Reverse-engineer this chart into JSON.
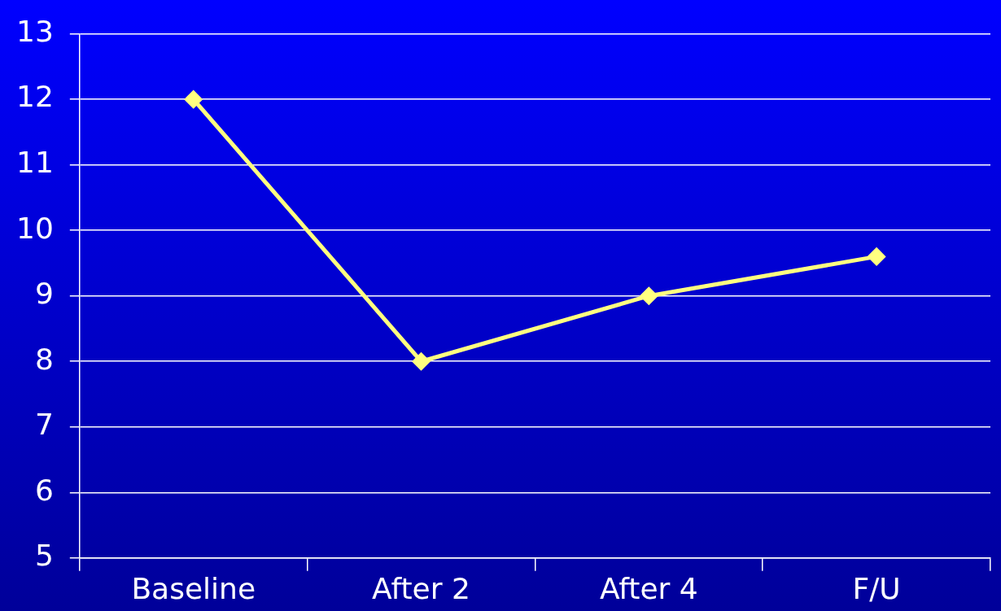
{
  "chart_data": {
    "type": "line",
    "categories": [
      "Baseline",
      "After 2",
      "After 4",
      "F/U"
    ],
    "series": [
      {
        "color": "#ffff80",
        "values": [
          12,
          8,
          9,
          9.6
        ]
      }
    ],
    "ylim": [
      5,
      13
    ],
    "yticks": [
      5,
      6,
      7,
      8,
      9,
      10,
      11,
      12,
      13
    ],
    "grid": "y",
    "legend": false,
    "marker": "diamond",
    "line_style": "solid"
  }
}
